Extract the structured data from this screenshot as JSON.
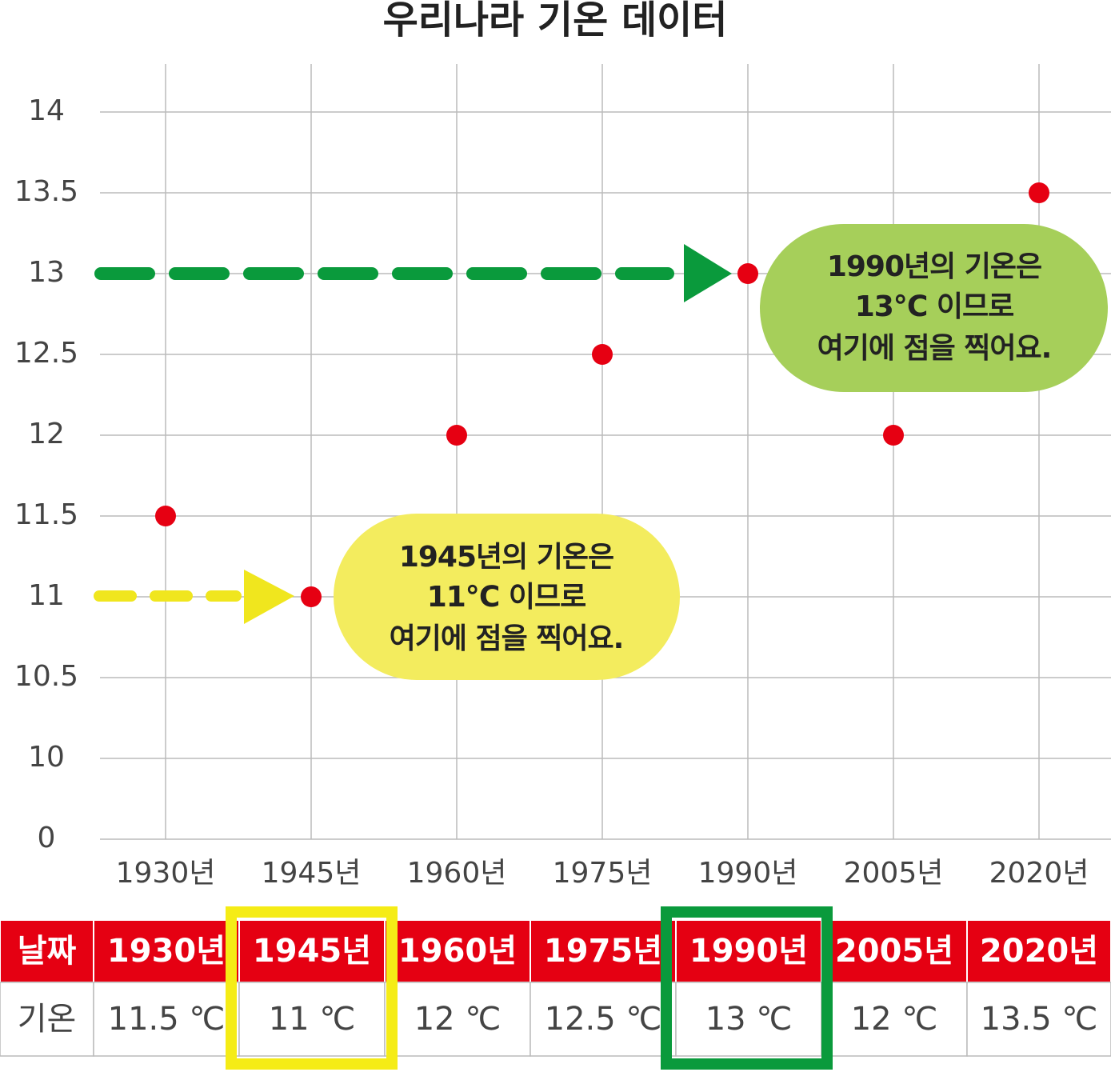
{
  "chart_data": {
    "type": "scatter",
    "title": "우리나라 기온 데이터",
    "categories": [
      "1930년",
      "1945년",
      "1960년",
      "1975년",
      "1990년",
      "2005년",
      "2020년"
    ],
    "values": [
      11.5,
      11,
      12,
      12.5,
      13,
      12,
      13.5
    ],
    "color": "#e60012",
    "ylim": [
      0,
      14
    ],
    "yticks": [
      0,
      10,
      10.5,
      11,
      11.5,
      12,
      12.5,
      13,
      13.5,
      14
    ],
    "axis_break": true,
    "grid": true,
    "annotations": [
      {
        "lines": [
          "1990년의 기온은",
          "13℃ 이므로",
          "여기에 점을 찍어요."
        ],
        "color": "#a6cf5a"
      },
      {
        "lines": [
          "1945년의 기온은",
          "11℃ 이므로",
          "여기에 점을 찍어요."
        ],
        "color": "#f3ec5e"
      }
    ]
  },
  "table": {
    "header": [
      "날짜",
      "1930년",
      "1945년",
      "1960년",
      "1975년",
      "1990년",
      "2005년",
      "2020년"
    ],
    "rows": [
      [
        "기온",
        "11.5 ℃",
        "11 ℃",
        "12 ℃",
        "12.5 ℃",
        "13 ℃",
        "12 ℃",
        "13.5 ℃"
      ]
    ]
  }
}
